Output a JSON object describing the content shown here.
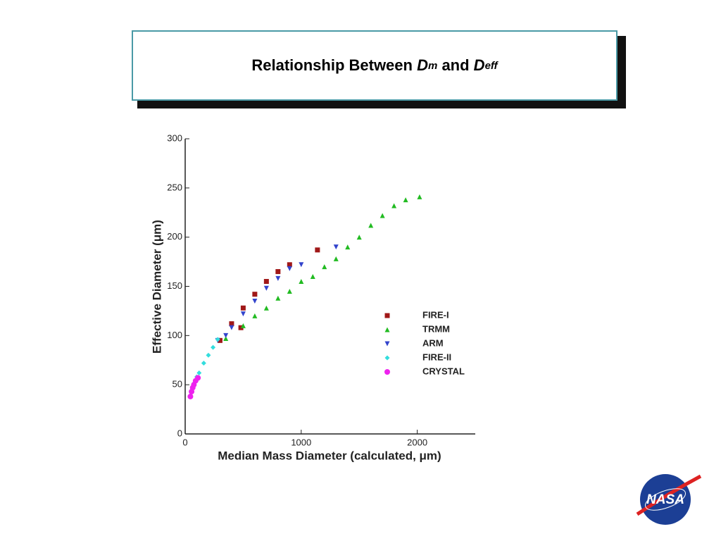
{
  "header": {
    "title_parts": [
      "Relationship Between ",
      "D",
      "m",
      " and ",
      "D",
      "eff"
    ]
  },
  "chart_data": {
    "type": "scatter",
    "xlabel": "Median Mass Diameter (calculated, μm)",
    "ylabel": "Effective Diameter (μm)",
    "xlim": [
      0,
      2500
    ],
    "ylim": [
      0,
      300
    ],
    "xticks": [
      0,
      1000,
      2000
    ],
    "yticks": [
      0,
      50,
      100,
      150,
      200,
      250,
      300
    ],
    "series": [
      {
        "name": "FIRE-I",
        "color": "#a01818",
        "marker": "square",
        "x": [
          300,
          400,
          480,
          500,
          600,
          700,
          800,
          900,
          1140
        ],
        "values": [
          95,
          112,
          108,
          128,
          142,
          155,
          165,
          172,
          187
        ]
      },
      {
        "name": "TRMM",
        "color": "#22bb22",
        "marker": "triangle-up",
        "x": [
          350,
          500,
          600,
          700,
          800,
          900,
          1000,
          1100,
          1200,
          1300,
          1400,
          1500,
          1600,
          1700,
          1800,
          1900,
          2020
        ],
        "values": [
          97,
          110,
          120,
          128,
          138,
          145,
          155,
          160,
          170,
          178,
          190,
          200,
          212,
          222,
          232,
          238,
          241
        ]
      },
      {
        "name": "ARM",
        "color": "#3344cc",
        "marker": "triangle-down",
        "x": [
          280,
          350,
          400,
          500,
          600,
          700,
          800,
          900,
          1000,
          1300
        ],
        "values": [
          95,
          100,
          108,
          122,
          135,
          148,
          158,
          168,
          172,
          190
        ]
      },
      {
        "name": "FIRE-II",
        "color": "#33dddd",
        "marker": "diamond",
        "x": [
          80,
          100,
          120,
          160,
          200,
          240,
          280
        ],
        "values": [
          52,
          58,
          62,
          72,
          80,
          88,
          96
        ]
      },
      {
        "name": "CRYSTAL",
        "color": "#ee22ee",
        "marker": "circle",
        "x": [
          45,
          55,
          65,
          75,
          90,
          110
        ],
        "values": [
          38,
          43,
          47,
          50,
          54,
          57
        ]
      }
    ]
  },
  "logo": "NASA"
}
